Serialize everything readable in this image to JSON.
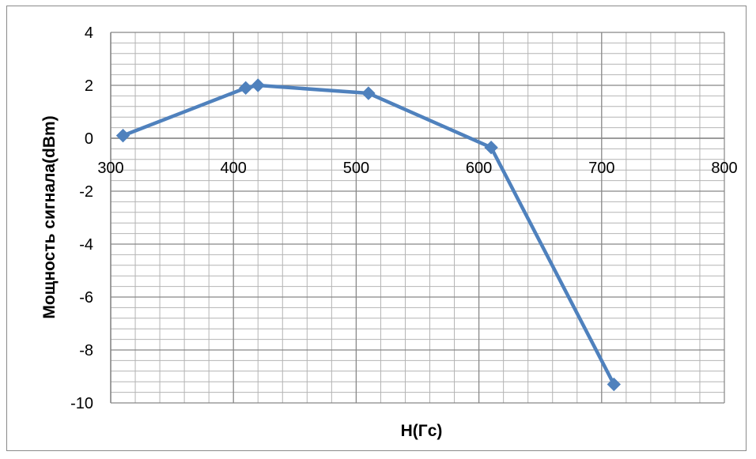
{
  "chart_data": {
    "type": "scatter",
    "xlabel": "H(Гс)",
    "ylabel": "Мощность сигнала(dBm)",
    "xlim": [
      300,
      800
    ],
    "ylim": [
      -10,
      4
    ],
    "x_ticks": [
      300,
      400,
      500,
      600,
      700,
      800
    ],
    "y_ticks": [
      4,
      2,
      0,
      -2,
      -4,
      -6,
      -8,
      -10
    ],
    "x_axis_crosses_at_y": 0,
    "grid": "major and minor",
    "legend": "none",
    "marker": "diamond",
    "series_color": "#4F81BD",
    "series": [
      {
        "x": [
          310,
          410,
          420,
          510,
          610,
          710
        ],
        "y": [
          0.1,
          1.9,
          2.0,
          1.7,
          -0.35,
          -9.3
        ]
      }
    ]
  }
}
